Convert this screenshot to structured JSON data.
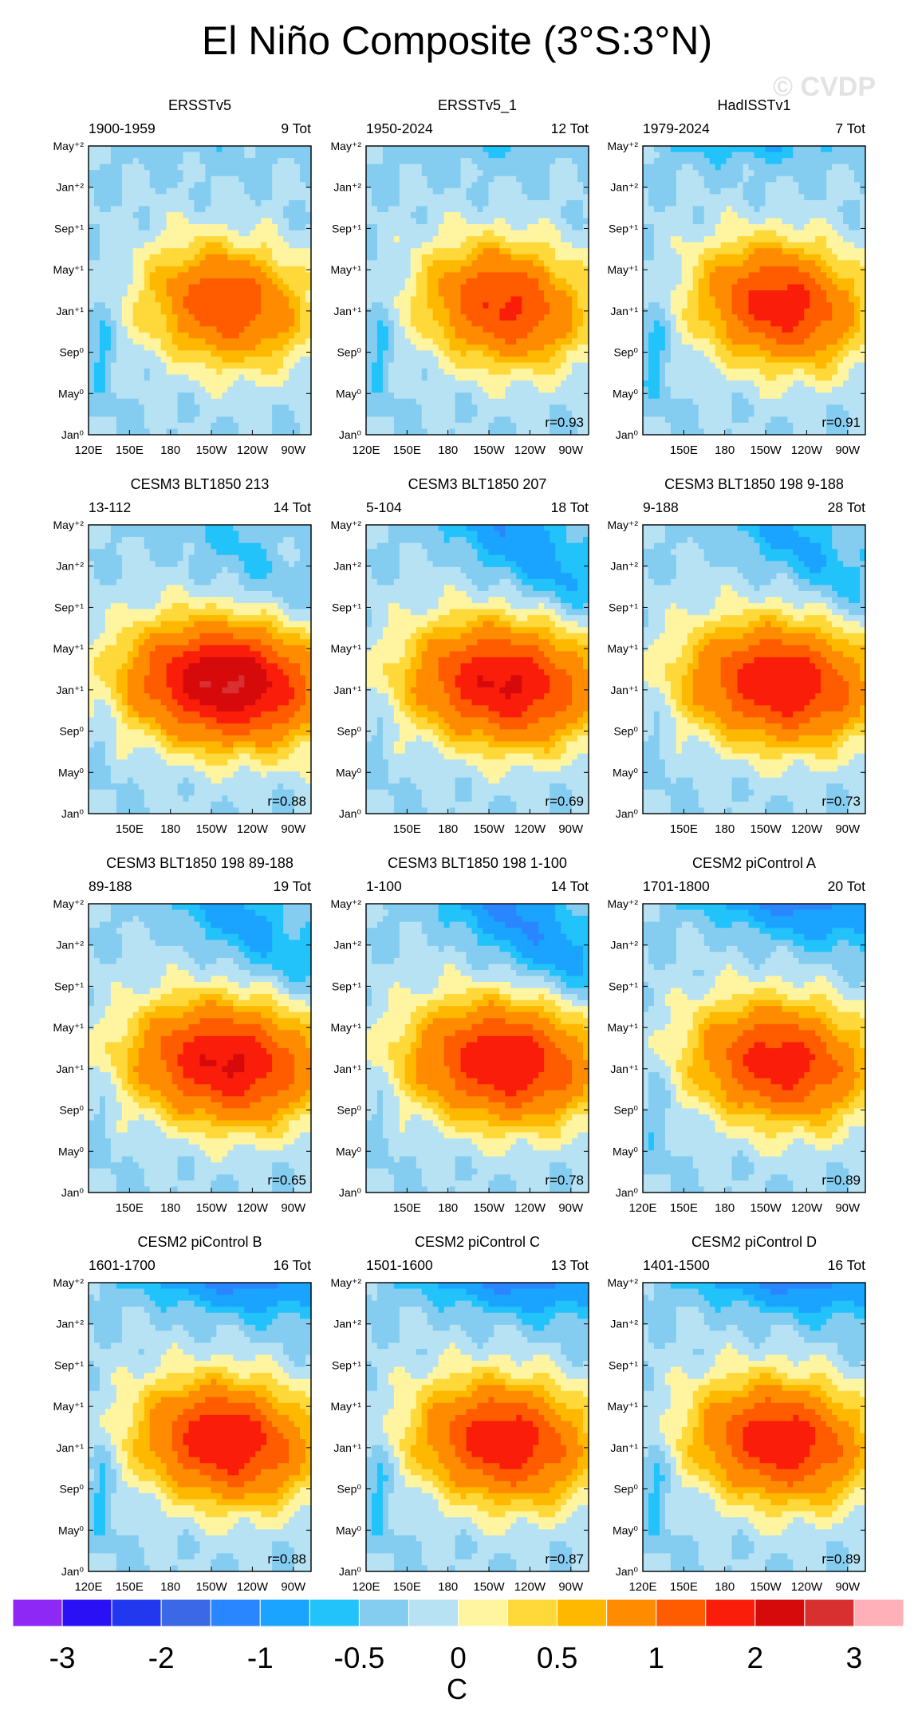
{
  "figure": {
    "title": "El Niño Composite (3°S:3°N)",
    "watermark": "© CVDP",
    "colorbar": {
      "labels": [
        "-3",
        "-2",
        "-1",
        "-0.5",
        "0",
        "0.5",
        "1",
        "2",
        "3"
      ],
      "unit": "C",
      "colors": [
        "#8d28f5",
        "#2a10f5",
        "#2238ee",
        "#3a68e6",
        "#2a86ff",
        "#1aa3ff",
        "#22c2fa",
        "#84ccf0",
        "#b7e2f4",
        "#fff5a0",
        "#ffd83a",
        "#ffb800",
        "#ff8c00",
        "#ff5c00",
        "#fa1e0a",
        "#d60a0a",
        "#d83030",
        "#ffb0b8"
      ]
    },
    "y_ticks": [
      "May⁺²",
      "Jan⁺²",
      "Sep⁺¹",
      "May⁺¹",
      "Jan⁺¹",
      "Sep⁰",
      "May⁰",
      "Jan⁰"
    ],
    "x_ticks_full": [
      "120E",
      "150E",
      "180",
      "150W",
      "120W",
      "90W"
    ],
    "x_ticks_short": [
      "150E",
      "180",
      "150W",
      "120W",
      "90W"
    ]
  },
  "chart_data": [
    {
      "type": "heatmap",
      "title": "ERSSTv5",
      "period": "1900-1959",
      "count": "9 Tot",
      "r": "",
      "x_ticks": "full",
      "peak": 1.9,
      "lag": 0.0,
      "cold": 0.4,
      "west": 0.35
    },
    {
      "type": "heatmap",
      "title": "ERSSTv5_1",
      "period": "1950-2024",
      "count": "12 Tot",
      "r": "r=0.93",
      "x_ticks": "full",
      "peak": 2.1,
      "lag": 0.0,
      "cold": 0.8,
      "west": 0.35
    },
    {
      "type": "heatmap",
      "title": "HadISSTv1",
      "period": "1979-2024",
      "count": "7 Tot",
      "r": "r=0.91",
      "x_ticks": "short",
      "peak": 2.3,
      "lag": 0.0,
      "cold": 1.3,
      "west": 0.4
    },
    {
      "type": "heatmap",
      "title": "CESM3 BLT1850 213",
      "period": "13-112",
      "count": "14 Tot",
      "r": "r=0.88",
      "x_ticks": "short",
      "peak": 3.1,
      "lag": 1.0,
      "cold": 0.3,
      "west": 0.15
    },
    {
      "type": "heatmap",
      "title": "CESM3 BLT1850 207",
      "period": "5-104",
      "count": "18 Tot",
      "r": "r=0.69",
      "x_ticks": "short",
      "peak": 2.6,
      "lag": 0.8,
      "cold": 0.9,
      "west": 0.15
    },
    {
      "type": "heatmap",
      "title": "CESM3 BLT1850 198 9-188",
      "period": "9-188",
      "count": "28 Tot",
      "r": "r=0.73",
      "x_ticks": "short",
      "peak": 2.5,
      "lag": 0.8,
      "cold": 0.6,
      "west": 0.15
    },
    {
      "type": "heatmap",
      "title": "CESM3 BLT1850 198 89-188",
      "period": "89-188",
      "count": "19 Tot",
      "r": "r=0.65",
      "x_ticks": "short",
      "peak": 2.6,
      "lag": 0.8,
      "cold": 0.7,
      "west": 0.15
    },
    {
      "type": "heatmap",
      "title": "CESM3 BLT1850 198 1-100",
      "period": "1-100",
      "count": "14 Tot",
      "r": "r=0.78",
      "x_ticks": "short",
      "peak": 2.5,
      "lag": 0.8,
      "cold": 1.1,
      "west": 0.15
    },
    {
      "type": "heatmap",
      "title": "CESM2 piControl A",
      "period": "1701-1800",
      "count": "20 Tot",
      "r": "r=0.89",
      "x_ticks": "full",
      "peak": 2.3,
      "lag": 0.4,
      "cold": 1.5,
      "west": 0.3
    },
    {
      "type": "heatmap",
      "title": "CESM2 piControl B",
      "period": "1601-1700",
      "count": "16 Tot",
      "r": "r=0.88",
      "x_ticks": "full",
      "peak": 2.5,
      "lag": 0.3,
      "cold": 1.8,
      "west": 0.4
    },
    {
      "type": "heatmap",
      "title": "CESM2 piControl C",
      "period": "1501-1600",
      "count": "13 Tot",
      "r": "r=0.87",
      "x_ticks": "full",
      "peak": 2.4,
      "lag": 0.3,
      "cold": 1.8,
      "west": 0.4
    },
    {
      "type": "heatmap",
      "title": "CESM2 piControl D",
      "period": "1401-1500",
      "count": "16 Tot",
      "r": "r=0.89",
      "x_ticks": "full",
      "peak": 2.4,
      "lag": 0.3,
      "cold": 1.8,
      "west": 0.4
    }
  ]
}
